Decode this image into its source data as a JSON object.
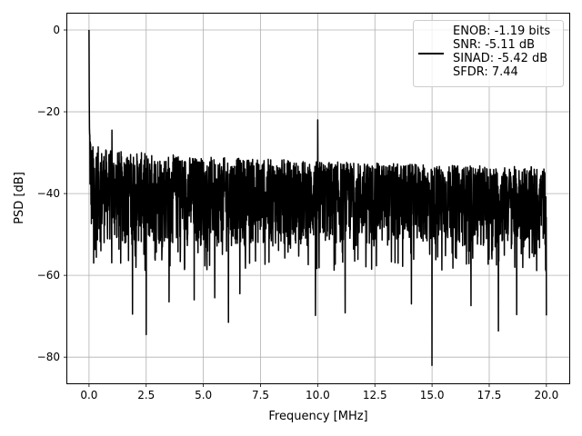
{
  "chart_data": {
    "type": "line",
    "xlabel": "Frequency [MHz]",
    "ylabel": "PSD [dB]",
    "xlim": [
      -0.95,
      21.0
    ],
    "ylim": [
      -86.4,
      4.0
    ],
    "xticks": [
      0.0,
      2.5,
      5.0,
      7.5,
      10.0,
      12.5,
      15.0,
      17.5,
      20.0
    ],
    "xtick_labels": [
      "0.0",
      "2.5",
      "5.0",
      "7.5",
      "10.0",
      "12.5",
      "15.0",
      "17.5",
      "20.0"
    ],
    "yticks": [
      0,
      -20,
      -40,
      -60,
      -80
    ],
    "ytick_labels": [
      "0",
      "−20",
      "−40",
      "−60",
      "−80"
    ],
    "grid": true,
    "legend_placement": "top-right",
    "line_color": "#000000",
    "series": [
      {
        "name": "ENOB: -1.19 bits\nSNR: -5.11 dB\nSINAD: -5.42 dB\nSFDR: 7.44",
        "approx_band_upper": [
          [
            0.02,
            -18
          ],
          [
            0.1,
            -28
          ],
          [
            1.0,
            -29.5
          ],
          [
            5.0,
            -31
          ],
          [
            10.0,
            -32
          ],
          [
            15.0,
            -33
          ],
          [
            20.0,
            -33.5
          ]
        ],
        "approx_band_lower": [
          [
            0.02,
            -40
          ],
          [
            0.1,
            -52
          ],
          [
            1.0,
            -53
          ],
          [
            5.0,
            -53
          ],
          [
            10.0,
            -53
          ],
          [
            15.0,
            -53
          ],
          [
            20.0,
            -53
          ]
        ],
        "peaks": [
          [
            0.0,
            0.0
          ],
          [
            0.05,
            -16.0
          ],
          [
            1.0,
            -24.5
          ],
          [
            10.0,
            -22.0
          ]
        ],
        "dips": [
          [
            0.2,
            -57.0
          ],
          [
            1.9,
            -69.5
          ],
          [
            2.5,
            -74.5
          ],
          [
            3.5,
            -66.5
          ],
          [
            4.6,
            -66.0
          ],
          [
            5.5,
            -65.5
          ],
          [
            6.1,
            -71.5
          ],
          [
            6.6,
            -64.5
          ],
          [
            9.9,
            -69.8
          ],
          [
            11.2,
            -69.2
          ],
          [
            14.1,
            -67.0
          ],
          [
            15.0,
            -82.0
          ],
          [
            16.7,
            -67.4
          ],
          [
            17.9,
            -73.6
          ],
          [
            18.7,
            -69.6
          ],
          [
            20.0,
            -69.8
          ]
        ]
      }
    ]
  }
}
